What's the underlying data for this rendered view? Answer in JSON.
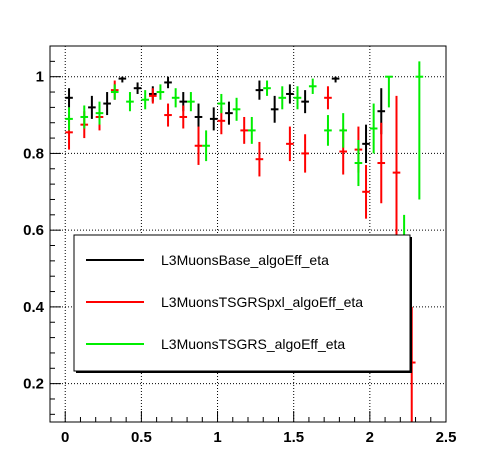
{
  "chart_data": {
    "type": "scatter",
    "title": "",
    "xlabel": "",
    "ylabel": "",
    "xlim": [
      -0.1,
      2.5
    ],
    "ylim": [
      0.1,
      1.08
    ],
    "grid": true,
    "legend_placement": "center-left",
    "x_ticks": [
      "0",
      "0.5",
      "1",
      "1.5",
      "2",
      "2.5"
    ],
    "y_ticks": [
      "0.2",
      "0.4",
      "0.6",
      "0.8",
      "1"
    ],
    "x_tick_values": [
      0,
      0.5,
      1,
      1.5,
      2,
      2.5
    ],
    "y_tick_values": [
      0.2,
      0.4,
      0.6,
      0.8,
      1.0
    ],
    "series": [
      {
        "name": "L3MuonsBase_algoEff_eta",
        "color": "#000000",
        "points": [
          {
            "x": 0.025,
            "y": 0.945,
            "ylo": 0.92,
            "yhi": 0.97
          },
          {
            "x": 0.175,
            "y": 0.92,
            "ylo": 0.89,
            "yhi": 0.95
          },
          {
            "x": 0.275,
            "y": 0.93,
            "ylo": 0.9,
            "yhi": 0.96
          },
          {
            "x": 0.375,
            "y": 0.995,
            "ylo": 0.985,
            "yhi": 1.0
          },
          {
            "x": 0.475,
            "y": 0.97,
            "ylo": 0.955,
            "yhi": 0.985
          },
          {
            "x": 0.575,
            "y": 0.955,
            "ylo": 0.935,
            "yhi": 0.975
          },
          {
            "x": 0.675,
            "y": 0.985,
            "ylo": 0.97,
            "yhi": 1.0
          },
          {
            "x": 0.775,
            "y": 0.935,
            "ylo": 0.91,
            "yhi": 0.96
          },
          {
            "x": 0.875,
            "y": 0.895,
            "ylo": 0.86,
            "yhi": 0.93
          },
          {
            "x": 0.975,
            "y": 0.89,
            "ylo": 0.86,
            "yhi": 0.92
          },
          {
            "x": 1.075,
            "y": 0.905,
            "ylo": 0.875,
            "yhi": 0.935
          },
          {
            "x": 1.275,
            "y": 0.965,
            "ylo": 0.94,
            "yhi": 0.99
          },
          {
            "x": 1.375,
            "y": 0.915,
            "ylo": 0.88,
            "yhi": 0.95
          },
          {
            "x": 1.475,
            "y": 0.955,
            "ylo": 0.93,
            "yhi": 0.98
          },
          {
            "x": 1.575,
            "y": 0.935,
            "ylo": 0.905,
            "yhi": 0.965
          },
          {
            "x": 1.775,
            "y": 0.995,
            "ylo": 0.985,
            "yhi": 1.0
          },
          {
            "x": 1.975,
            "y": 0.825,
            "ylo": 0.775,
            "yhi": 0.875
          },
          {
            "x": 2.075,
            "y": 0.91,
            "ylo": 0.85,
            "yhi": 0.97
          }
        ]
      },
      {
        "name": "L3MuonsTSGRSpxl_algoEff_eta",
        "color": "#ff0000",
        "points": [
          {
            "x": 0.025,
            "y": 0.855,
            "ylo": 0.81,
            "yhi": 0.9
          },
          {
            "x": 0.125,
            "y": 0.875,
            "ylo": 0.84,
            "yhi": 0.91
          },
          {
            "x": 0.225,
            "y": 0.895,
            "ylo": 0.86,
            "yhi": 0.93
          },
          {
            "x": 0.325,
            "y": 0.965,
            "ylo": 0.94,
            "yhi": 0.99
          },
          {
            "x": 0.575,
            "y": 0.95,
            "ylo": 0.93,
            "yhi": 0.97
          },
          {
            "x": 0.675,
            "y": 0.9,
            "ylo": 0.87,
            "yhi": 0.93
          },
          {
            "x": 0.775,
            "y": 0.895,
            "ylo": 0.865,
            "yhi": 0.925
          },
          {
            "x": 0.875,
            "y": 0.82,
            "ylo": 0.77,
            "yhi": 0.87
          },
          {
            "x": 1.025,
            "y": 0.885,
            "ylo": 0.85,
            "yhi": 0.92
          },
          {
            "x": 1.175,
            "y": 0.86,
            "ylo": 0.825,
            "yhi": 0.895
          },
          {
            "x": 1.275,
            "y": 0.785,
            "ylo": 0.74,
            "yhi": 0.83
          },
          {
            "x": 1.475,
            "y": 0.825,
            "ylo": 0.78,
            "yhi": 0.87
          },
          {
            "x": 1.575,
            "y": 0.8,
            "ylo": 0.75,
            "yhi": 0.85
          },
          {
            "x": 1.725,
            "y": 0.945,
            "ylo": 0.915,
            "yhi": 0.975
          },
          {
            "x": 1.825,
            "y": 0.805,
            "ylo": 0.745,
            "yhi": 0.865
          },
          {
            "x": 1.925,
            "y": 0.81,
            "ylo": 0.75,
            "yhi": 0.87
          },
          {
            "x": 1.975,
            "y": 0.7,
            "ylo": 0.63,
            "yhi": 0.77
          },
          {
            "x": 2.075,
            "y": 0.775,
            "ylo": 0.67,
            "yhi": 0.88
          },
          {
            "x": 2.175,
            "y": 0.75,
            "ylo": 0.55,
            "yhi": 0.95
          },
          {
            "x": 2.275,
            "y": 0.255,
            "ylo": 0.1,
            "yhi": 0.4
          }
        ]
      },
      {
        "name": "L3MuonsTSGRS_algoEff_eta",
        "color": "#00ee00",
        "points": [
          {
            "x": 0.025,
            "y": 0.89,
            "ylo": 0.86,
            "yhi": 0.92
          },
          {
            "x": 0.125,
            "y": 0.895,
            "ylo": 0.865,
            "yhi": 0.925
          },
          {
            "x": 0.225,
            "y": 0.905,
            "ylo": 0.875,
            "yhi": 0.935
          },
          {
            "x": 0.325,
            "y": 0.96,
            "ylo": 0.94,
            "yhi": 0.98
          },
          {
            "x": 0.425,
            "y": 0.935,
            "ylo": 0.91,
            "yhi": 0.96
          },
          {
            "x": 0.525,
            "y": 0.94,
            "ylo": 0.915,
            "yhi": 0.965
          },
          {
            "x": 0.625,
            "y": 0.96,
            "ylo": 0.94,
            "yhi": 0.98
          },
          {
            "x": 0.725,
            "y": 0.945,
            "ylo": 0.92,
            "yhi": 0.97
          },
          {
            "x": 0.825,
            "y": 0.935,
            "ylo": 0.91,
            "yhi": 0.96
          },
          {
            "x": 0.925,
            "y": 0.82,
            "ylo": 0.78,
            "yhi": 0.86
          },
          {
            "x": 1.025,
            "y": 0.93,
            "ylo": 0.905,
            "yhi": 0.955
          },
          {
            "x": 1.125,
            "y": 0.915,
            "ylo": 0.885,
            "yhi": 0.945
          },
          {
            "x": 1.225,
            "y": 0.86,
            "ylo": 0.825,
            "yhi": 0.895
          },
          {
            "x": 1.325,
            "y": 0.97,
            "ylo": 0.95,
            "yhi": 0.99
          },
          {
            "x": 1.425,
            "y": 0.945,
            "ylo": 0.915,
            "yhi": 0.975
          },
          {
            "x": 1.525,
            "y": 0.945,
            "ylo": 0.915,
            "yhi": 0.975
          },
          {
            "x": 1.625,
            "y": 0.975,
            "ylo": 0.955,
            "yhi": 0.995
          },
          {
            "x": 1.725,
            "y": 0.86,
            "ylo": 0.82,
            "yhi": 0.9
          },
          {
            "x": 1.825,
            "y": 0.86,
            "ylo": 0.815,
            "yhi": 0.905
          },
          {
            "x": 1.925,
            "y": 0.775,
            "ylo": 0.715,
            "yhi": 0.835
          },
          {
            "x": 2.025,
            "y": 0.865,
            "ylo": 0.8,
            "yhi": 0.93
          },
          {
            "x": 2.125,
            "y": 1.0,
            "ylo": 0.92,
            "yhi": 1.0
          },
          {
            "x": 2.225,
            "y": 0.465,
            "ylo": 0.3,
            "yhi": 0.64
          },
          {
            "x": 2.325,
            "y": 1.0,
            "ylo": 0.68,
            "yhi": 1.04
          }
        ]
      }
    ]
  }
}
